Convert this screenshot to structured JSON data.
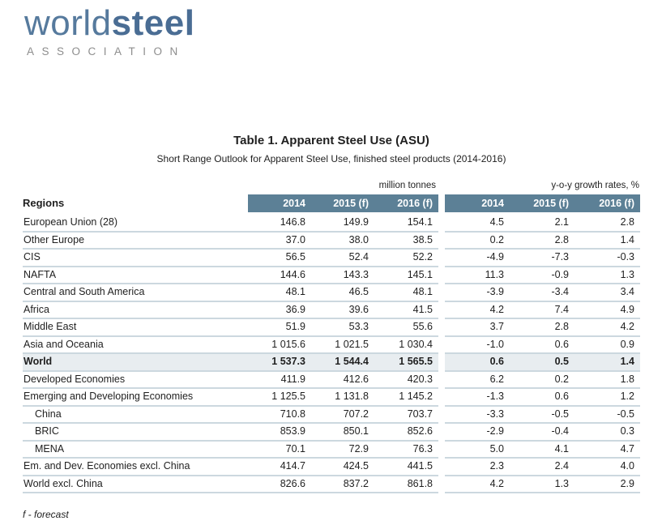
{
  "logo": {
    "world": "world",
    "steel": "steel",
    "subtext": "ASSOCIATION"
  },
  "title": "Table 1. Apparent Steel Use (ASU)",
  "subtitle": "Short Range Outlook for Apparent Steel Use, finished steel products (2014-2016)",
  "table": {
    "regions_header": "Regions",
    "group1_unit": "million tonnes",
    "group2_unit": "y-o-y growth rates, %",
    "year_headers": [
      "2014",
      "2015 (f)",
      "2016 (f)"
    ],
    "rows": [
      {
        "region": "European Union (28)",
        "tonnes": [
          "146.8",
          "149.9",
          "154.1"
        ],
        "growth": [
          "4.5",
          "2.1",
          "2.8"
        ],
        "bold": false,
        "indent": false
      },
      {
        "region": "Other Europe",
        "tonnes": [
          "37.0",
          "38.0",
          "38.5"
        ],
        "growth": [
          "0.2",
          "2.8",
          "1.4"
        ],
        "bold": false,
        "indent": false
      },
      {
        "region": "CIS",
        "tonnes": [
          "56.5",
          "52.4",
          "52.2"
        ],
        "growth": [
          "-4.9",
          "-7.3",
          "-0.3"
        ],
        "bold": false,
        "indent": false
      },
      {
        "region": "NAFTA",
        "tonnes": [
          "144.6",
          "143.3",
          "145.1"
        ],
        "growth": [
          "11.3",
          "-0.9",
          "1.3"
        ],
        "bold": false,
        "indent": false
      },
      {
        "region": "Central and South America",
        "tonnes": [
          "48.1",
          "46.5",
          "48.1"
        ],
        "growth": [
          "-3.9",
          "-3.4",
          "3.4"
        ],
        "bold": false,
        "indent": false
      },
      {
        "region": "Africa",
        "tonnes": [
          "36.9",
          "39.6",
          "41.5"
        ],
        "growth": [
          "4.2",
          "7.4",
          "4.9"
        ],
        "bold": false,
        "indent": false
      },
      {
        "region": "Middle East",
        "tonnes": [
          "51.9",
          "53.3",
          "55.6"
        ],
        "growth": [
          "3.7",
          "2.8",
          "4.2"
        ],
        "bold": false,
        "indent": false
      },
      {
        "region": "Asia and Oceania",
        "tonnes": [
          "1 015.6",
          "1 021.5",
          "1 030.4"
        ],
        "growth": [
          "-1.0",
          "0.6",
          "0.9"
        ],
        "bold": false,
        "indent": false
      },
      {
        "region": "World",
        "tonnes": [
          "1 537.3",
          "1 544.4",
          "1 565.5"
        ],
        "growth": [
          "0.6",
          "0.5",
          "1.4"
        ],
        "bold": true,
        "indent": false
      },
      {
        "region": "Developed Economies",
        "tonnes": [
          "411.9",
          "412.6",
          "420.3"
        ],
        "growth": [
          "6.2",
          "0.2",
          "1.8"
        ],
        "bold": false,
        "indent": false
      },
      {
        "region": "Emerging and Developing Economies",
        "tonnes": [
          "1 125.5",
          "1 131.8",
          "1 145.2"
        ],
        "growth": [
          "-1.3",
          "0.6",
          "1.2"
        ],
        "bold": false,
        "indent": false
      },
      {
        "region": "China",
        "tonnes": [
          "710.8",
          "707.2",
          "703.7"
        ],
        "growth": [
          "-3.3",
          "-0.5",
          "-0.5"
        ],
        "bold": false,
        "indent": true
      },
      {
        "region": "BRIC",
        "tonnes": [
          "853.9",
          "850.1",
          "852.6"
        ],
        "growth": [
          "-2.9",
          "-0.4",
          "0.3"
        ],
        "bold": false,
        "indent": true
      },
      {
        "region": "MENA",
        "tonnes": [
          "70.1",
          "72.9",
          "76.3"
        ],
        "growth": [
          "5.0",
          "4.1",
          "4.7"
        ],
        "bold": false,
        "indent": true
      },
      {
        "region": "Em. and Dev. Economies excl. China",
        "tonnes": [
          "414.7",
          "424.5",
          "441.5"
        ],
        "growth": [
          "2.3",
          "2.4",
          "4.0"
        ],
        "bold": false,
        "indent": false
      },
      {
        "region": "World excl. China",
        "tonnes": [
          "826.6",
          "837.2",
          "861.8"
        ],
        "growth": [
          "4.2",
          "1.3",
          "2.9"
        ],
        "bold": false,
        "indent": false
      }
    ]
  },
  "footnote": "f - forecast",
  "colors": {
    "band": "#5c8096",
    "world_row_bg": "#e8edf0",
    "separator": "#ccd8df",
    "logo_world": "#567a9d",
    "logo_steel": "#4a6d94",
    "association_gray": "#8d8d8d",
    "text": "#1f1f1f"
  }
}
